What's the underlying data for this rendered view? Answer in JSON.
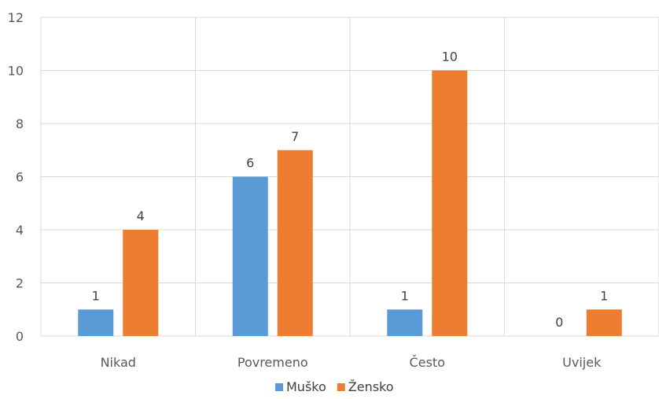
{
  "chart_data": {
    "type": "bar",
    "categories": [
      "Nikad",
      "Povremeno",
      "Često",
      "Uvijek"
    ],
    "series": [
      {
        "name": "Muško",
        "values": [
          1,
          6,
          1,
          0
        ],
        "color": "#5b9bd5"
      },
      {
        "name": "Žensko",
        "values": [
          4,
          7,
          10,
          1
        ],
        "color": "#ed7d31"
      }
    ],
    "ylim": [
      0,
      12
    ],
    "yticks": [
      0,
      2,
      4,
      6,
      8,
      10,
      12
    ],
    "grid": true,
    "legend": "bottom",
    "data_labels": true
  }
}
